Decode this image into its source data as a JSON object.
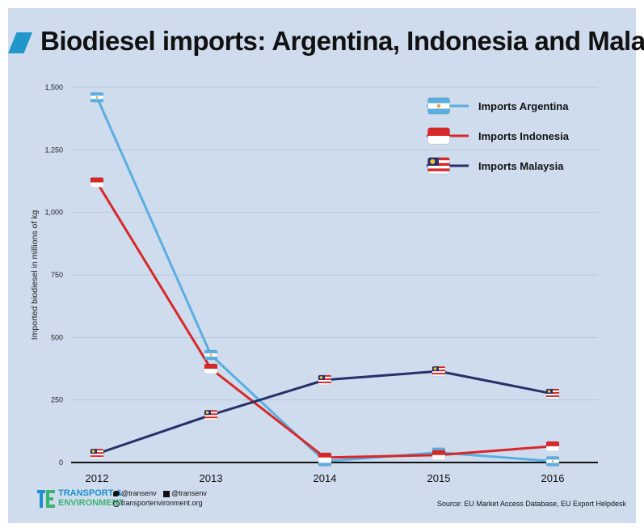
{
  "title": "Biodiesel imports: Argentina, Indonesia and Malaysia",
  "footer": {
    "org_line1": "TRANSPORT &",
    "org_line2": "ENVIRONMENT",
    "twitter": "@transenv",
    "facebook": "@transenv",
    "website": "transportenvironment.org",
    "source": "Source: EU Market Access Database, EU Export Helpdesk"
  },
  "colors": {
    "argentina": "#5aaee0",
    "indonesia": "#d62829",
    "malaysia": "#26306a",
    "background": "#cfdcee",
    "title_accent": "#2196c9"
  },
  "chart_data": {
    "type": "line",
    "title": "Biodiesel imports: Argentina, Indonesia and Malaysia",
    "xlabel": "",
    "ylabel": "Imported biodiesel in millions of kg",
    "categories": [
      "2012",
      "2013",
      "2014",
      "2015",
      "2016"
    ],
    "ylim": [
      0,
      1500
    ],
    "yticks": [
      0,
      250,
      500,
      750,
      1000,
      1250,
      1500
    ],
    "ytick_labels": [
      "0",
      "250",
      "500",
      "750",
      "1,000",
      "1,250",
      "1,500"
    ],
    "grid": true,
    "legend_position": "top-right",
    "series": [
      {
        "name": "Imports Argentina",
        "key": "argentina",
        "values": [
          1460,
          430,
          5,
          40,
          5
        ]
      },
      {
        "name": "Imports Indonesia",
        "key": "indonesia",
        "values": [
          1120,
          375,
          20,
          30,
          65
        ]
      },
      {
        "name": "Imports Malaysia",
        "key": "malaysia",
        "values": [
          35,
          190,
          330,
          365,
          275
        ]
      }
    ]
  }
}
